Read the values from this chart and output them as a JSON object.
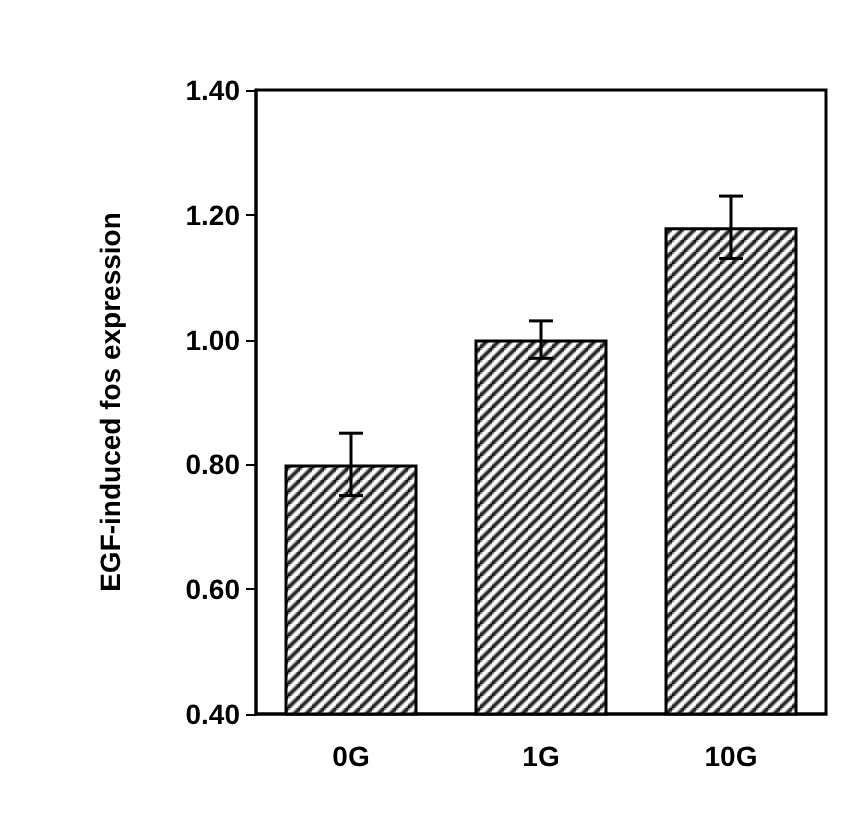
{
  "chart_data": {
    "type": "bar",
    "ylabel": "EGF-induced fos expression",
    "categories": [
      "0G",
      "1G",
      "10G"
    ],
    "values": [
      0.8,
      1.0,
      1.18
    ],
    "errors": [
      0.05,
      0.03,
      0.05
    ],
    "color": "#000000",
    "ylim": [
      0.4,
      1.4
    ],
    "yticks": [
      {
        "value": 0.4,
        "label": "0.40"
      },
      {
        "value": 0.6,
        "label": "0.60"
      },
      {
        "value": 0.8,
        "label": "0.80"
      },
      {
        "value": 1.0,
        "label": "1.00"
      },
      {
        "value": 1.2,
        "label": "1.20"
      },
      {
        "value": 1.4,
        "label": "1.40"
      }
    ],
    "grid": false
  }
}
